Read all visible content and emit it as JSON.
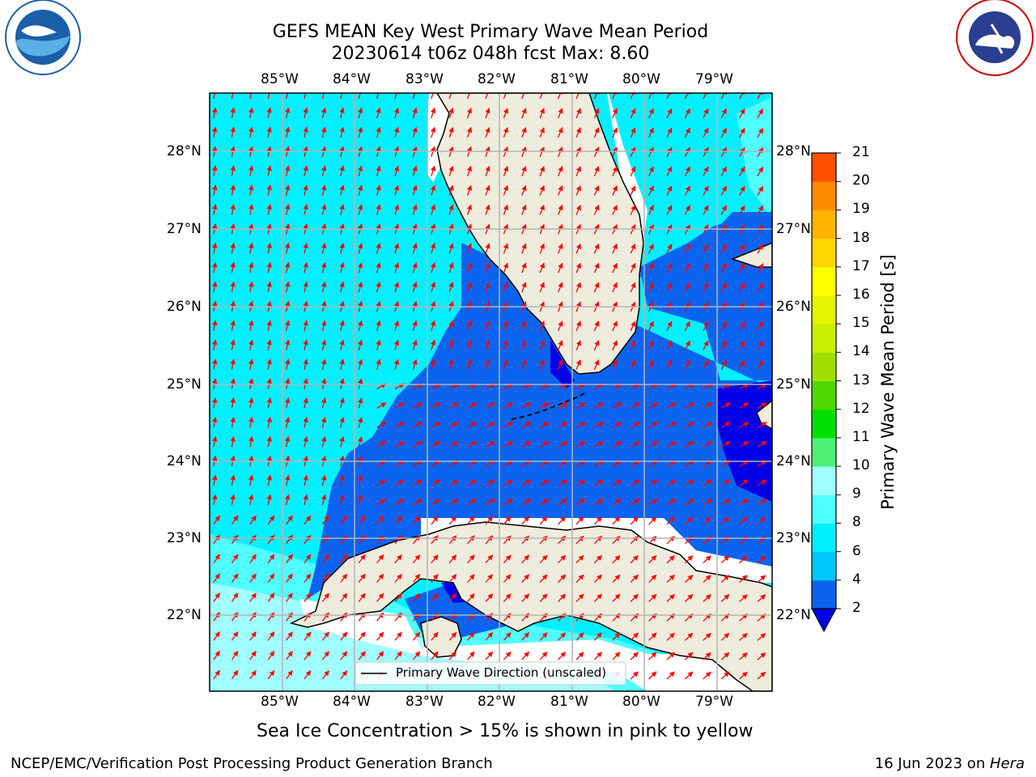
{
  "title_line1": "GEFS MEAN Key West Primary Wave Mean Period",
  "title_line2": "20230614 t06z 048h fcst   Max: 8.60",
  "lon_labels": [
    "85°W",
    "84°W",
    "83°W",
    "82°W",
    "81°W",
    "80°W",
    "79°W"
  ],
  "lat_labels": [
    "28°N",
    "27°N",
    "26°N",
    "25°N",
    "24°N",
    "23°N",
    "22°N"
  ],
  "legend_label": "Primary Wave Direction (unscaled)",
  "colorbar": {
    "label": "Primary Wave Mean Period [s]",
    "ticks": [
      "2",
      "4",
      "6",
      "8",
      "9",
      "10",
      "11",
      "12",
      "13",
      "14",
      "15",
      "16",
      "17",
      "18",
      "19",
      "20",
      "21"
    ],
    "colors": [
      "#0a64f0",
      "#00c8ff",
      "#00f0ff",
      "#50ffff",
      "#a0ffff",
      "#50f078",
      "#00e000",
      "#50d800",
      "#a0e000",
      "#c8f000",
      "#e6f500",
      "#ffff00",
      "#ffd700",
      "#ffb400",
      "#ff8c00",
      "#ff5000",
      "#ff1e00",
      "#ff0000"
    ]
  },
  "ice_note": "Sea Ice Concentration > 15% is shown in pink to yellow",
  "footer_left": "NCEP/EMC/Verification Post Processing Product Generation Branch",
  "footer_date": "16 Jun 2023 on ",
  "footer_host": "Hera",
  "logos": {
    "left": "NOAA",
    "right": "NATIONAL WEATHER SERVICE"
  },
  "colors": {
    "land": "#eeecdc",
    "grid": "#b4b4b4",
    "arrow": "#ff0000",
    "band_2_4": "#0a64f0",
    "band_4_6": "#00f0ff",
    "band_6_8": "#50ffff",
    "band_8_9": "#a0ffff",
    "low": "#0000e6"
  }
}
